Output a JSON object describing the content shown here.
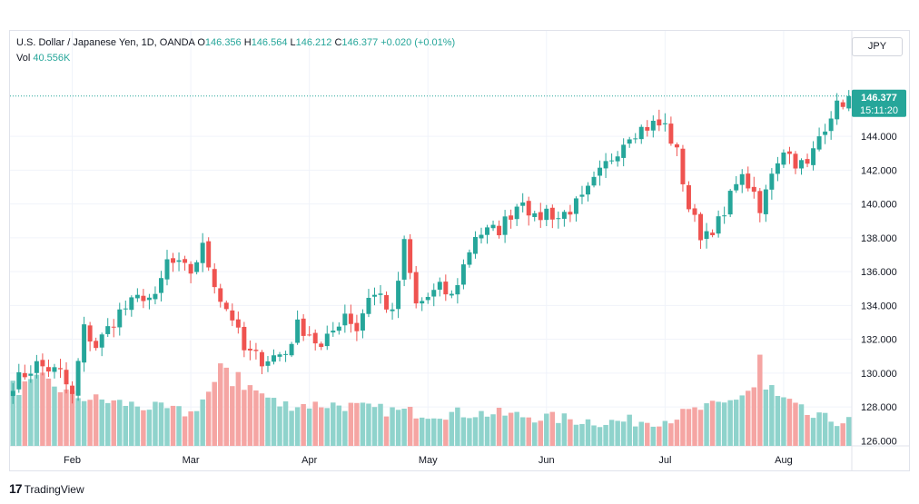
{
  "legend": {
    "symbol": "U.S. Dollar / Japanese Yen, 1D, OANDA",
    "o_label": "O",
    "o_value": "146.356",
    "h_label": "H",
    "h_value": "146.564",
    "l_label": "L",
    "l_value": "146.212",
    "c_label": "C",
    "c_value": "146.377",
    "change": "+0.020 (+0.01%)",
    "vol_label": "Vol",
    "vol_value": "40.556K"
  },
  "currency_button": "JPY",
  "price_tag": {
    "price": "146.377",
    "countdown": "15:11:20"
  },
  "brand": {
    "mark": "17",
    "name": "TradingView"
  },
  "colors": {
    "up": "#26a69a",
    "down": "#ef5350",
    "up_vol": "#8fd3cc",
    "down_vol": "#f5a5a3",
    "grid": "#f0f3fa",
    "tag": "#26a69a"
  },
  "chart_data": {
    "type": "candlestick",
    "y_ticks": [
      "126.000",
      "128.000",
      "130.000",
      "132.000",
      "134.000",
      "136.000",
      "138.000",
      "140.000",
      "142.000",
      "144.000"
    ],
    "ylim": [
      125.7,
      147.6
    ],
    "x_ticks": [
      "Feb",
      "Mar",
      "Apr",
      "May",
      "Jun",
      "Jul",
      "Aug"
    ],
    "x_tick_index": [
      10,
      30,
      50,
      70,
      90,
      110,
      130
    ],
    "n_bars": 142,
    "anchors": [
      [
        0,
        129.4
      ],
      [
        4,
        130.5
      ],
      [
        8,
        130.0
      ],
      [
        10,
        128.6
      ],
      [
        12,
        132.6
      ],
      [
        14,
        131.6
      ],
      [
        18,
        133.6
      ],
      [
        22,
        134.6
      ],
      [
        24,
        134.3
      ],
      [
        26,
        136.6
      ],
      [
        30,
        136.0
      ],
      [
        32,
        137.4
      ],
      [
        35,
        134.4
      ],
      [
        37,
        133.3
      ],
      [
        39,
        131.3
      ],
      [
        42,
        130.8
      ],
      [
        46,
        131.2
      ],
      [
        48,
        132.8
      ],
      [
        50,
        132.4
      ],
      [
        52,
        131.4
      ],
      [
        56,
        133.6
      ],
      [
        58,
        132.6
      ],
      [
        60,
        134.6
      ],
      [
        62,
        134.6
      ],
      [
        64,
        133.4
      ],
      [
        66,
        137.6
      ],
      [
        68,
        134.0
      ],
      [
        72,
        135.0
      ],
      [
        74,
        134.5
      ],
      [
        78,
        138.2
      ],
      [
        82,
        138.5
      ],
      [
        86,
        140.4
      ],
      [
        88,
        139.0
      ],
      [
        90,
        139.6
      ],
      [
        92,
        139.2
      ],
      [
        96,
        140.2
      ],
      [
        100,
        142.3
      ],
      [
        104,
        144.2
      ],
      [
        108,
        144.7
      ],
      [
        110,
        144.6
      ],
      [
        112,
        143.0
      ],
      [
        114,
        139.8
      ],
      [
        116,
        138.2
      ],
      [
        118,
        138.6
      ],
      [
        120,
        139.2
      ],
      [
        122,
        141.6
      ],
      [
        124,
        141.2
      ],
      [
        126,
        139.4
      ],
      [
        128,
        142.0
      ],
      [
        130,
        143.3
      ],
      [
        132,
        142.5
      ],
      [
        134,
        142.2
      ],
      [
        136,
        144.0
      ],
      [
        138,
        145.4
      ],
      [
        141,
        146.4
      ]
    ],
    "vol_range": [
      5,
      45
    ],
    "vol_anchors": [
      [
        0,
        22
      ],
      [
        5,
        28
      ],
      [
        10,
        20
      ],
      [
        20,
        16
      ],
      [
        30,
        12
      ],
      [
        35,
        28
      ],
      [
        40,
        24
      ],
      [
        45,
        16
      ],
      [
        55,
        16
      ],
      [
        60,
        14
      ],
      [
        70,
        12
      ],
      [
        80,
        12
      ],
      [
        90,
        10
      ],
      [
        100,
        8
      ],
      [
        110,
        9
      ],
      [
        116,
        14
      ],
      [
        120,
        16
      ],
      [
        125,
        24
      ],
      [
        130,
        18
      ],
      [
        135,
        10
      ],
      [
        141,
        8
      ]
    ],
    "vol_spikes": [
      [
        0,
        30
      ],
      [
        35,
        38
      ],
      [
        36,
        36
      ],
      [
        38,
        34
      ],
      [
        126,
        42
      ],
      [
        128,
        28
      ]
    ],
    "last_price": 146.377
  }
}
